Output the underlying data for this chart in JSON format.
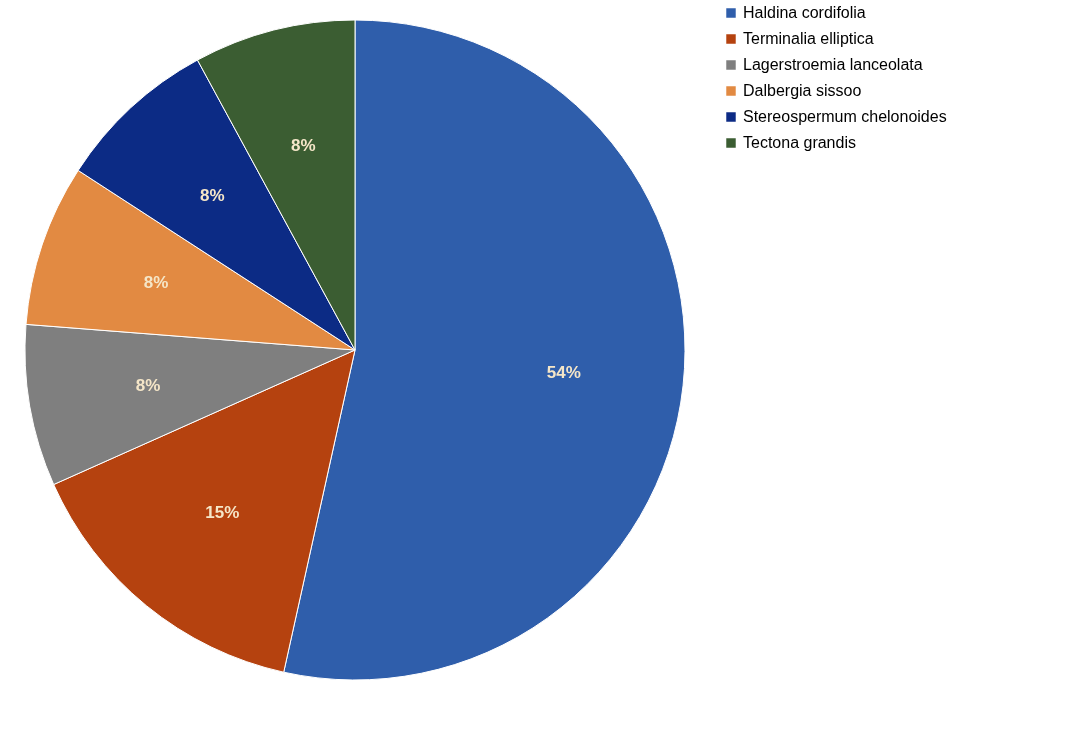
{
  "chart_data": {
    "type": "pie",
    "categories": [
      "Haldina cordifolia",
      "Terminalia elliptica",
      "Lagerstroemia lanceolata",
      "Dalbergia sissoo",
      "Stereospermum chelonoides",
      "Tectona grandis"
    ],
    "values": [
      54,
      15,
      8,
      8,
      8,
      8
    ],
    "colors": [
      "#2f5eab",
      "#b5420f",
      "#7f7f7f",
      "#e28a42",
      "#0c2b85",
      "#3b5d32"
    ],
    "value_labels": [
      "54%",
      "15%",
      "8%",
      "8%",
      "8%",
      "8%"
    ],
    "legend": "right"
  }
}
